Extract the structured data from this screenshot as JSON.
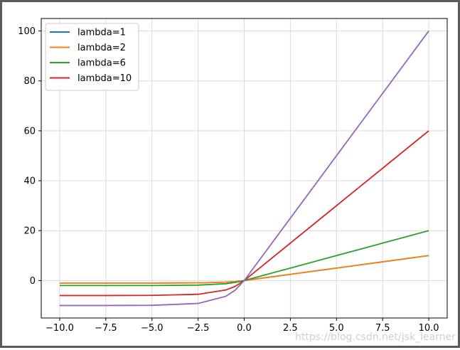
{
  "chart_data": {
    "type": "line",
    "title": "",
    "xlabel": "",
    "ylabel": "",
    "xlim": [
      -11,
      11
    ],
    "ylim": [
      -15,
      105
    ],
    "grid": true,
    "legend_position": "upper-left",
    "xticks": [
      -10,
      -7.5,
      -5,
      -2.5,
      0,
      2.5,
      5,
      7.5,
      10
    ],
    "xtick_labels": [
      "−10.0",
      "−7.5",
      "−5.0",
      "−2.5",
      "0.0",
      "2.5",
      "5.0",
      "7.5",
      "10.0"
    ],
    "yticks": [
      0,
      20,
      40,
      60,
      80,
      100
    ],
    "ytick_labels": [
      "0",
      "20",
      "40",
      "60",
      "80",
      "100"
    ],
    "series": [
      {
        "name": "lambda=1",
        "color": "#1f77b4",
        "points": [
          [
            -10,
            -1
          ],
          [
            -7.5,
            -1
          ],
          [
            -5,
            -0.99
          ],
          [
            -2.5,
            -0.92
          ],
          [
            -1,
            -0.63
          ],
          [
            -0.5,
            -0.39
          ],
          [
            0,
            0
          ],
          [
            2.5,
            2.5
          ],
          [
            5,
            5
          ],
          [
            7.5,
            7.5
          ],
          [
            10,
            10
          ]
        ]
      },
      {
        "name": "lambda=2",
        "color": "#ff7f0e",
        "points": [
          [
            -10,
            -1
          ],
          [
            -7.5,
            -1
          ],
          [
            -5,
            -0.99
          ],
          [
            -2.5,
            -0.92
          ],
          [
            -1,
            -0.63
          ],
          [
            -0.5,
            -0.39
          ],
          [
            0,
            0
          ],
          [
            2.5,
            2.5
          ],
          [
            5,
            5
          ],
          [
            7.5,
            7.5
          ],
          [
            10,
            10
          ]
        ]
      },
      {
        "name": "lambda=6",
        "color": "#2ca02c",
        "points": [
          [
            -10,
            -2
          ],
          [
            -7.5,
            -2
          ],
          [
            -5,
            -1.99
          ],
          [
            -2.5,
            -1.84
          ],
          [
            -1,
            -1.26
          ],
          [
            -0.5,
            -0.79
          ],
          [
            0,
            0
          ],
          [
            2.5,
            5
          ],
          [
            5,
            10
          ],
          [
            7.5,
            15
          ],
          [
            10,
            20
          ]
        ]
      },
      {
        "name": "lambda=10",
        "color": "#d62728",
        "points": [
          [
            -10,
            -6
          ],
          [
            -7.5,
            -6
          ],
          [
            -5,
            -5.96
          ],
          [
            -2.5,
            -5.51
          ],
          [
            -1,
            -3.79
          ],
          [
            -0.5,
            -2.36
          ],
          [
            0,
            0
          ],
          [
            2.5,
            15
          ],
          [
            5,
            30
          ],
          [
            7.5,
            45
          ],
          [
            10,
            60
          ]
        ]
      },
      {
        "color": "#9467bd",
        "points": [
          [
            -10,
            -10
          ],
          [
            -7.5,
            -10
          ],
          [
            -5,
            -9.93
          ],
          [
            -2.5,
            -9.18
          ],
          [
            -1,
            -6.32
          ],
          [
            -0.5,
            -3.93
          ],
          [
            0,
            0
          ],
          [
            2.5,
            25
          ],
          [
            5,
            50
          ],
          [
            7.5,
            75
          ],
          [
            10,
            100
          ]
        ]
      }
    ]
  },
  "watermark": "https://blog.csdn.net/jsk_learner"
}
